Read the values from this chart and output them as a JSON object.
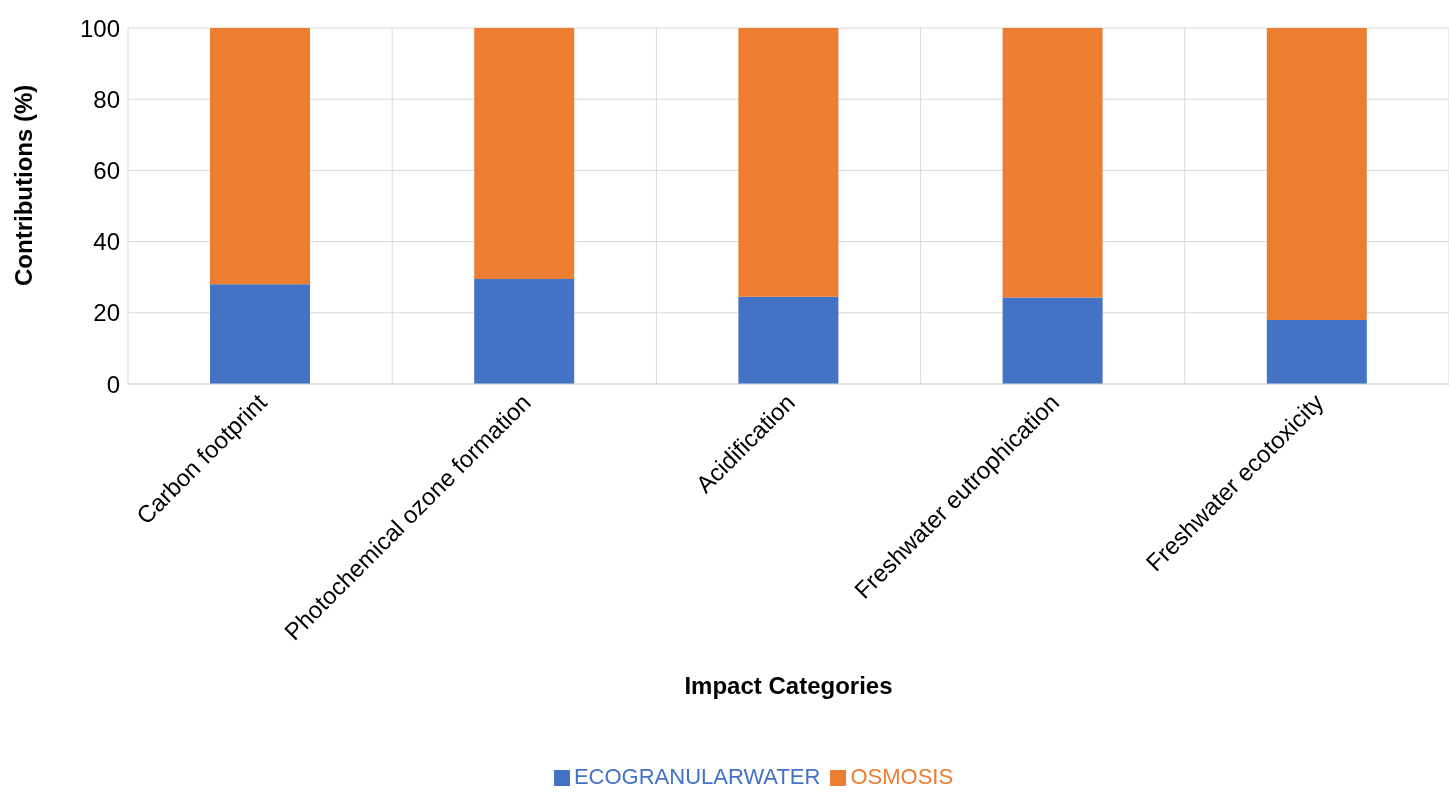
{
  "chart_data": {
    "type": "bar",
    "stacked": true,
    "xlabel": "Impact Categories",
    "ylabel": "Contributions (%)",
    "categories": [
      "Carbon footprint",
      "Photochemical ozone formation",
      "Acidification",
      "Freshwater eutrophication",
      "Freshwater ecotoxicity"
    ],
    "series": [
      {
        "name": "ECOGRANULARWATER",
        "color": "#4472c4",
        "values": [
          28,
          29.5,
          24.5,
          24.3,
          18
        ]
      },
      {
        "name": "OSMOSIS",
        "color": "#ed7d31",
        "values": [
          72,
          70.5,
          75.5,
          75.7,
          82
        ]
      }
    ],
    "ylim": [
      0,
      100
    ],
    "yticks": [
      0,
      20,
      40,
      60,
      80,
      100
    ],
    "grid": true,
    "legend": "bottom"
  }
}
